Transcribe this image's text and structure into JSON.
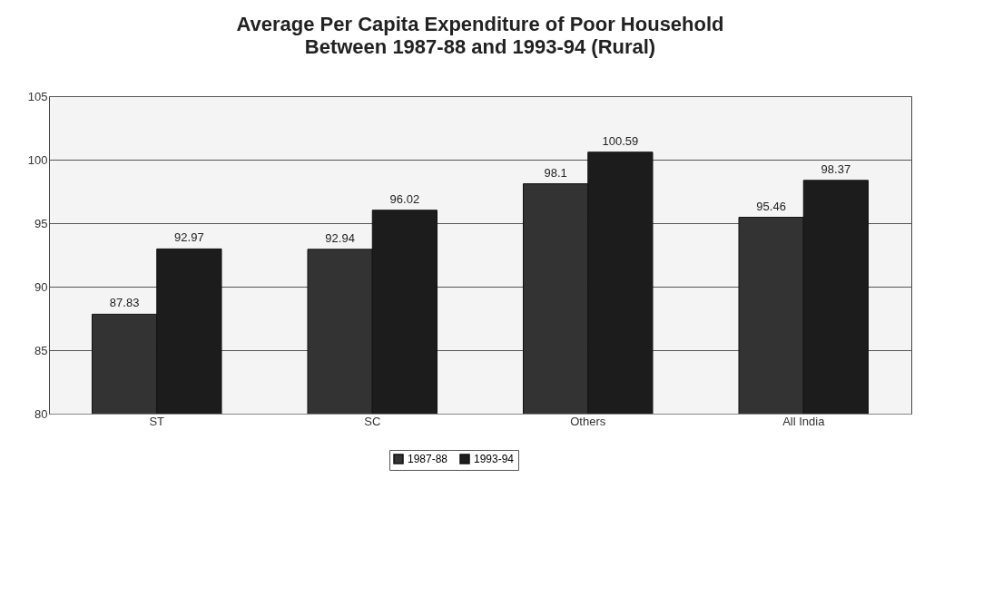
{
  "chart_data": {
    "type": "bar",
    "title": "Average Per Capita  Expenditure of Poor Household",
    "subtitle": "Between 1987-88 and 1993-94 (Rural)",
    "categories": [
      "ST",
      "SC",
      "Others",
      "All India"
    ],
    "series": [
      {
        "name": "1987-88",
        "color": "#333333",
        "values": [
          87.83,
          92.94,
          98.1,
          95.46
        ]
      },
      {
        "name": "1993-94",
        "color": "#1c1c1c",
        "values": [
          92.97,
          96.02,
          100.59,
          98.37
        ]
      }
    ],
    "ylim": [
      80,
      105
    ],
    "yticks": [
      80,
      85,
      90,
      95,
      100,
      105
    ],
    "grid": "y",
    "legend": "bottom",
    "data_labels": true
  }
}
